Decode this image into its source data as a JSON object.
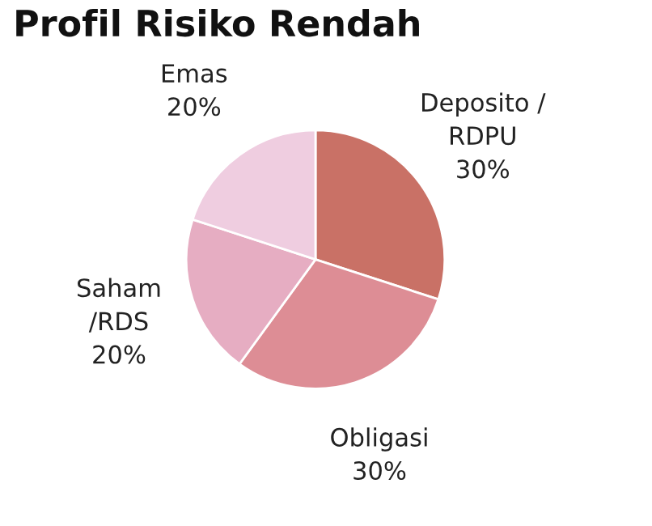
{
  "chart_data": {
    "type": "pie",
    "title": "Profil Risiko Rendah",
    "categories": [
      "Deposito / RDPU",
      "Obligasi",
      "Saham /RDS",
      "Emas"
    ],
    "values": [
      30,
      30,
      20,
      20
    ],
    "colors": [
      "#c97166",
      "#dd8d95",
      "#e6adc2",
      "#efcde0"
    ],
    "value_labels": [
      "30%",
      "30%",
      "20%",
      "20%"
    ]
  }
}
